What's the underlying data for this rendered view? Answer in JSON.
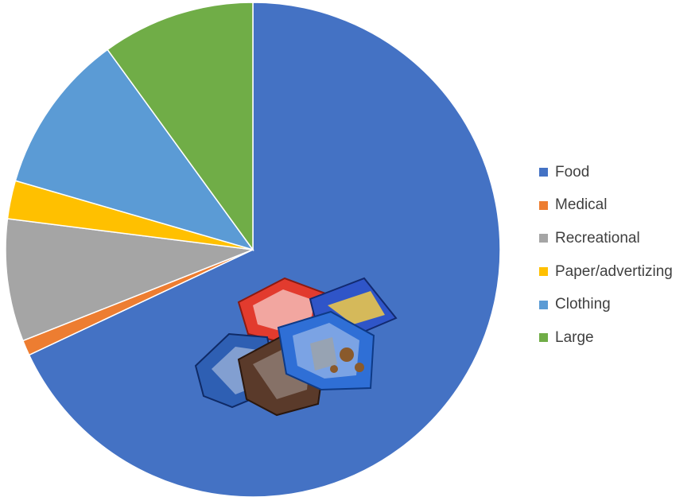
{
  "chart_data": {
    "type": "pie",
    "start": "12 o'clock",
    "direction": "clockwise",
    "categories": [
      "Food",
      "Medical",
      "Recreational",
      "Paper/advertizing",
      "Clothing",
      "Large"
    ],
    "values": [
      68,
      1,
      8,
      2.5,
      10.5,
      10
    ],
    "colors": [
      "#4472C4",
      "#ED7D31",
      "#A5A5A5",
      "#FFC000",
      "#5B9BD5",
      "#70AD47"
    ],
    "legend": {
      "position": "right",
      "entries": [
        "Food",
        "Medical",
        "Recreational",
        "Paper/advertizing",
        "Clothing",
        "Large"
      ]
    }
  },
  "overlay": {
    "icon": "snack-wrappers-pile-icon"
  }
}
